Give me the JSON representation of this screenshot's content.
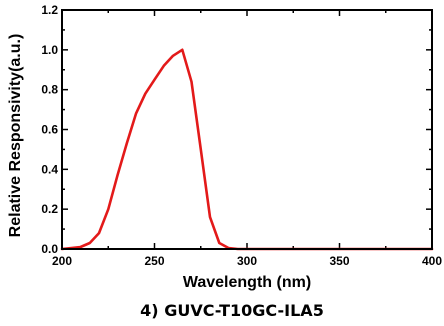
{
  "chart_data": {
    "type": "line",
    "xlabel": "Wavelength (nm)",
    "ylabel": "Relative Responsivity(a.u.)",
    "caption": "4) GUVC-T10GC-ILA5",
    "xlim": [
      200,
      400
    ],
    "ylim": [
      0.0,
      1.2
    ],
    "x_ticks": [
      200,
      250,
      300,
      350,
      400
    ],
    "y_ticks": [
      0.0,
      0.2,
      0.4,
      0.6,
      0.8,
      1.0,
      1.2
    ],
    "x_tick_labels": [
      "200",
      "250",
      "300",
      "350",
      "400"
    ],
    "y_tick_labels": [
      "0.0",
      "0.2",
      "0.4",
      "0.6",
      "0.8",
      "1.0",
      "1.2"
    ],
    "grid": false,
    "series": [
      {
        "color": "#e31a1a",
        "x": [
          200,
          205,
          210,
          215,
          220,
          225,
          230,
          235,
          240,
          245,
          250,
          255,
          260,
          265,
          270,
          275,
          280,
          285,
          290,
          295,
          300,
          350,
          400
        ],
        "y": [
          0.0,
          0.005,
          0.01,
          0.03,
          0.08,
          0.2,
          0.37,
          0.53,
          0.68,
          0.78,
          0.85,
          0.92,
          0.97,
          1.0,
          0.84,
          0.5,
          0.16,
          0.03,
          0.005,
          0.0,
          0.0,
          0.0,
          0.0
        ]
      }
    ]
  }
}
